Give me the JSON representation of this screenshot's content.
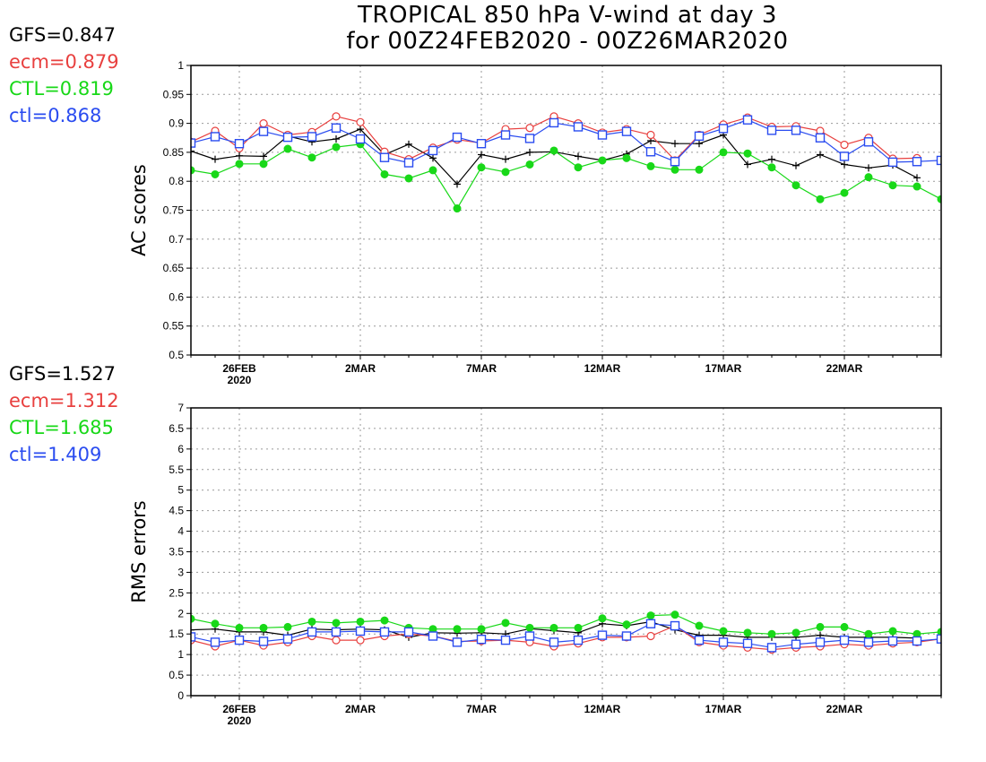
{
  "title_line1": "TROPICAL 850 hPa V-wind at day 3",
  "title_line2": "for 00Z24FEB2020 - 00Z26MAR2020",
  "legend_top": [
    {
      "label": "GFS=0.847",
      "color": "#000000"
    },
    {
      "label": "ecm=0.879",
      "color": "#e8403f"
    },
    {
      "label": "CTL=0.819",
      "color": "#18d818"
    },
    {
      "label": "ctl=0.868",
      "color": "#2a4cf0"
    }
  ],
  "legend_bottom": [
    {
      "label": "GFS=1.527",
      "color": "#000000"
    },
    {
      "label": "ecm=1.312",
      "color": "#e8403f"
    },
    {
      "label": "CTL=1.685",
      "color": "#18d818"
    },
    {
      "label": "ctl=1.409",
      "color": "#2a4cf0"
    }
  ],
  "chart_data": [
    {
      "type": "line",
      "ylabel": "AC scores",
      "ylim": [
        0.5,
        1.0
      ],
      "yticks": [
        "0.5",
        "0.55",
        "0.6",
        "0.65",
        "0.7",
        "0.75",
        "0.8",
        "0.85",
        "0.9",
        "0.95",
        "1"
      ],
      "x_day_range": [
        0,
        31
      ],
      "x_ticks": [
        {
          "day": 2,
          "label": "26FEB",
          "sublabel": "2020"
        },
        {
          "day": 7,
          "label": "2MAR",
          "sublabel": ""
        },
        {
          "day": 12,
          "label": "7MAR",
          "sublabel": ""
        },
        {
          "day": 17,
          "label": "12MAR",
          "sublabel": ""
        },
        {
          "day": 22,
          "label": "17MAR",
          "sublabel": ""
        },
        {
          "day": 27,
          "label": "22MAR",
          "sublabel": ""
        }
      ],
      "grid": true,
      "series": [
        {
          "name": "GFS",
          "color": "#000000",
          "marker": "plus",
          "values": [
            0.852,
            0.838,
            0.844,
            0.843,
            0.878,
            0.868,
            0.873,
            0.89,
            0.846,
            0.864,
            0.84,
            0.795,
            0.846,
            0.838,
            0.85,
            0.851,
            0.843,
            0.836,
            0.847,
            0.87,
            0.865,
            0.865,
            0.88,
            0.829,
            0.838,
            0.827,
            0.846,
            0.829,
            0.823,
            0.828,
            0.806
          ]
        },
        {
          "name": "ecm",
          "color": "#e8403f",
          "marker": "circle",
          "values": [
            0.868,
            0.887,
            0.857,
            0.9,
            0.88,
            0.885,
            0.912,
            0.902,
            0.851,
            0.838,
            0.858,
            0.872,
            0.866,
            0.89,
            0.892,
            0.912,
            0.9,
            0.884,
            0.89,
            0.88,
            0.836,
            0.88,
            0.898,
            0.91,
            0.894,
            0.895,
            0.887,
            0.863,
            0.875,
            0.839,
            0.84
          ]
        },
        {
          "name": "CTL",
          "color": "#18d818",
          "marker": "dot",
          "values": [
            0.819,
            0.812,
            0.83,
            0.83,
            0.856,
            0.841,
            0.859,
            0.864,
            0.812,
            0.805,
            0.819,
            0.753,
            0.824,
            0.816,
            0.829,
            0.853,
            0.824,
            0.836,
            0.84,
            0.826,
            0.82,
            0.82,
            0.85,
            0.848,
            0.824,
            0.793,
            0.769,
            0.78,
            0.807,
            0.793,
            0.791,
            0.769
          ]
        },
        {
          "name": "ctl",
          "color": "#2a4cf0",
          "marker": "square",
          "values": [
            0.866,
            0.877,
            0.865,
            0.886,
            0.876,
            0.877,
            0.892,
            0.873,
            0.841,
            0.832,
            0.853,
            0.876,
            0.865,
            0.88,
            0.874,
            0.901,
            0.894,
            0.88,
            0.886,
            0.851,
            0.834,
            0.878,
            0.891,
            0.906,
            0.888,
            0.888,
            0.875,
            0.843,
            0.868,
            0.833,
            0.834,
            0.836
          ]
        }
      ]
    },
    {
      "type": "line",
      "ylabel": "RMS errors",
      "ylim": [
        0,
        7
      ],
      "yticks": [
        "0",
        "0.5",
        "1",
        "1.5",
        "2",
        "2.5",
        "3",
        "3.5",
        "4",
        "4.5",
        "5",
        "5.5",
        "6",
        "6.5",
        "7"
      ],
      "x_day_range": [
        0,
        31
      ],
      "x_ticks": [
        {
          "day": 2,
          "label": "26FEB",
          "sublabel": "2020"
        },
        {
          "day": 7,
          "label": "2MAR",
          "sublabel": ""
        },
        {
          "day": 12,
          "label": "7MAR",
          "sublabel": ""
        },
        {
          "day": 17,
          "label": "12MAR",
          "sublabel": ""
        },
        {
          "day": 22,
          "label": "17MAR",
          "sublabel": ""
        },
        {
          "day": 27,
          "label": "22MAR",
          "sublabel": ""
        }
      ],
      "grid": true,
      "series": [
        {
          "name": "GFS",
          "color": "#000000",
          "marker": "plus",
          "values": [
            1.6,
            1.62,
            1.55,
            1.55,
            1.47,
            1.62,
            1.6,
            1.62,
            1.6,
            1.42,
            1.53,
            1.52,
            1.53,
            1.5,
            1.63,
            1.58,
            1.53,
            1.75,
            1.7,
            1.8,
            1.6,
            1.47,
            1.47,
            1.42,
            1.42,
            1.42,
            1.47,
            1.42,
            1.42,
            1.42,
            1.4
          ]
        },
        {
          "name": "ecm",
          "color": "#e8403f",
          "marker": "circle",
          "values": [
            1.35,
            1.2,
            1.35,
            1.22,
            1.3,
            1.45,
            1.35,
            1.35,
            1.45,
            1.5,
            1.45,
            1.32,
            1.33,
            1.35,
            1.3,
            1.2,
            1.27,
            1.42,
            1.42,
            1.45,
            1.7,
            1.3,
            1.22,
            1.17,
            1.12,
            1.17,
            1.2,
            1.25,
            1.22,
            1.27,
            1.3,
            1.38
          ]
        },
        {
          "name": "CTL",
          "color": "#18d818",
          "marker": "dot",
          "values": [
            1.87,
            1.75,
            1.65,
            1.65,
            1.67,
            1.8,
            1.77,
            1.8,
            1.83,
            1.65,
            1.62,
            1.62,
            1.62,
            1.77,
            1.65,
            1.65,
            1.65,
            1.88,
            1.73,
            1.95,
            1.97,
            1.7,
            1.57,
            1.53,
            1.5,
            1.53,
            1.67,
            1.67,
            1.5,
            1.57,
            1.5,
            1.55
          ]
        },
        {
          "name": "ctl",
          "color": "#2a4cf0",
          "marker": "square",
          "values": [
            1.43,
            1.3,
            1.35,
            1.32,
            1.38,
            1.55,
            1.55,
            1.57,
            1.55,
            1.55,
            1.45,
            1.3,
            1.37,
            1.35,
            1.45,
            1.3,
            1.35,
            1.47,
            1.45,
            1.75,
            1.7,
            1.35,
            1.3,
            1.27,
            1.17,
            1.25,
            1.3,
            1.35,
            1.3,
            1.33,
            1.33,
            1.38
          ]
        }
      ]
    }
  ]
}
